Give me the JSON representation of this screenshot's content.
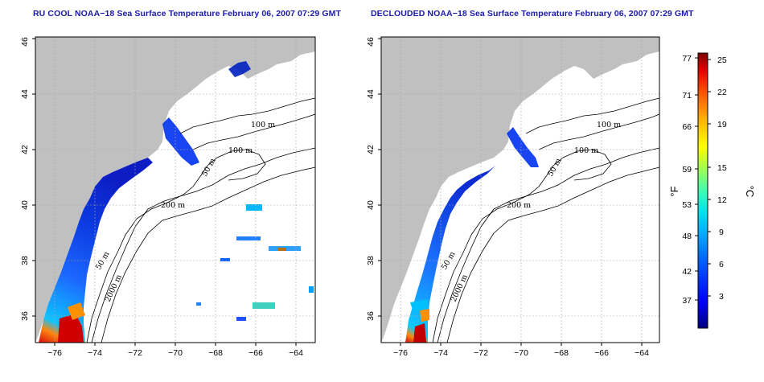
{
  "panels": [
    {
      "id": "ru-cool",
      "title": "RU COOL NOAA−18 Sea Surface Temperature February 06, 2007 07:29 GMT"
    },
    {
      "id": "declouded",
      "title": "DECLOUDED NOAA−18 Sea Surface Temperature February 06, 2007 07:29 GMT"
    }
  ],
  "axes": {
    "x_ticks": [
      "−76",
      "−74",
      "−72",
      "−70",
      "−68",
      "−66",
      "−64"
    ],
    "x_values": [
      -76,
      -74,
      -72,
      -70,
      -68,
      -66,
      -64
    ],
    "y_ticks": [
      "36",
      "38",
      "40",
      "42",
      "44",
      "46"
    ],
    "y_values": [
      36,
      38,
      40,
      42,
      44,
      46
    ],
    "xlim": [
      -77.0,
      -63.0
    ],
    "ylim": [
      35.0,
      46.0
    ],
    "grid": true
  },
  "contours": {
    "labels_left": [
      "100 m",
      "100 m",
      "50 m",
      "200 m",
      "50 m",
      "2000 m"
    ],
    "labels_right": [
      "100 m",
      "100 m",
      "50 m",
      "200 m",
      "50 m",
      "2000 m"
    ]
  },
  "colorbar": {
    "fahrenheit_ticks": [
      "77",
      "71",
      "66",
      "59",
      "53",
      "48",
      "42",
      "37"
    ],
    "celsius_ticks": [
      "25",
      "22",
      "19",
      "15",
      "12",
      "9",
      "6",
      "3"
    ],
    "celsius_range": [
      0,
      25.5
    ],
    "fahrenheit_unit": "°F",
    "celsius_unit": "°C",
    "colors": [
      "#000080",
      "#0000ff",
      "#0050ff",
      "#00a0ff",
      "#00e0f0",
      "#40ffb0",
      "#a0ff50",
      "#ffff00",
      "#ffb000",
      "#ff5000",
      "#e00000",
      "#800000"
    ]
  },
  "colors": {
    "land": "#c0c0c0",
    "title": "#1a1aa8",
    "grid": "#a8a8a8"
  }
}
